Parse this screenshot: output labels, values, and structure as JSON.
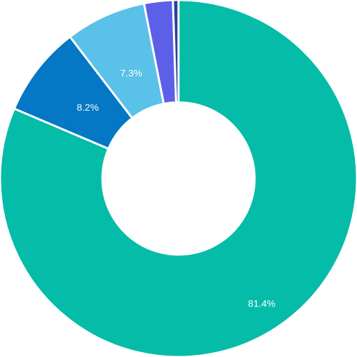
{
  "chart_data": {
    "type": "pie",
    "donut": true,
    "title": "",
    "start_angle_deg": 0,
    "slices": [
      {
        "value": 81.4,
        "label": "81.4%",
        "color": "#05bca9"
      },
      {
        "value": 8.2,
        "label": "8.2%",
        "color": "#0477c5"
      },
      {
        "value": 7.3,
        "label": "7.3%",
        "color": "#5ac1e8"
      },
      {
        "value": 2.6,
        "label": "",
        "color": "#5c60e8"
      },
      {
        "value": 0.5,
        "label": "",
        "color": "#2a3f9e"
      }
    ],
    "legend": "none"
  }
}
